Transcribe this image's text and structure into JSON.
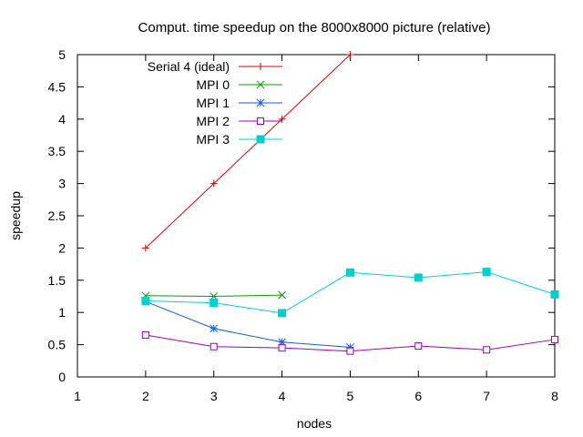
{
  "chart_data": {
    "type": "line",
    "title": "Comput. time speedup on the 8000x8000 picture (relative)",
    "xlabel": "nodes",
    "ylabel": "speedup",
    "xlim": [
      1,
      8
    ],
    "ylim": [
      0,
      5
    ],
    "xticks": [
      "1",
      "2",
      "3",
      "4",
      "5",
      "6",
      "7",
      "8"
    ],
    "yticks": [
      "0",
      "0.5",
      "1",
      "1.5",
      "2",
      "2.5",
      "3",
      "3.5",
      "4",
      "4.5",
      "5"
    ],
    "grid": false,
    "legend_position": "top-left",
    "series": [
      {
        "name": "Serial 4 (ideal)",
        "color": "#e00000",
        "marker": "plus",
        "x": [
          2,
          3,
          4,
          5
        ],
        "y": [
          2,
          3,
          4,
          5
        ]
      },
      {
        "name": "MPI 0",
        "color": "#00a000",
        "marker": "cross",
        "x": [
          2,
          3,
          4
        ],
        "y": [
          1.26,
          1.25,
          1.27
        ]
      },
      {
        "name": "MPI 1",
        "color": "#1060e0",
        "marker": "star",
        "x": [
          2,
          3,
          4,
          5
        ],
        "y": [
          1.17,
          0.75,
          0.54,
          0.46
        ]
      },
      {
        "name": "MPI 2",
        "color": "#a000c0",
        "marker": "open-square",
        "x": [
          2,
          3,
          4,
          5,
          6,
          7,
          8
        ],
        "y": [
          0.65,
          0.47,
          0.45,
          0.4,
          0.48,
          0.42,
          0.58
        ]
      },
      {
        "name": "MPI 3",
        "color": "#00d0d0",
        "marker": "filled-square",
        "x": [
          2,
          3,
          4,
          5,
          6,
          7,
          8
        ],
        "y": [
          1.18,
          1.15,
          0.99,
          1.62,
          1.54,
          1.63,
          1.28
        ]
      }
    ]
  }
}
